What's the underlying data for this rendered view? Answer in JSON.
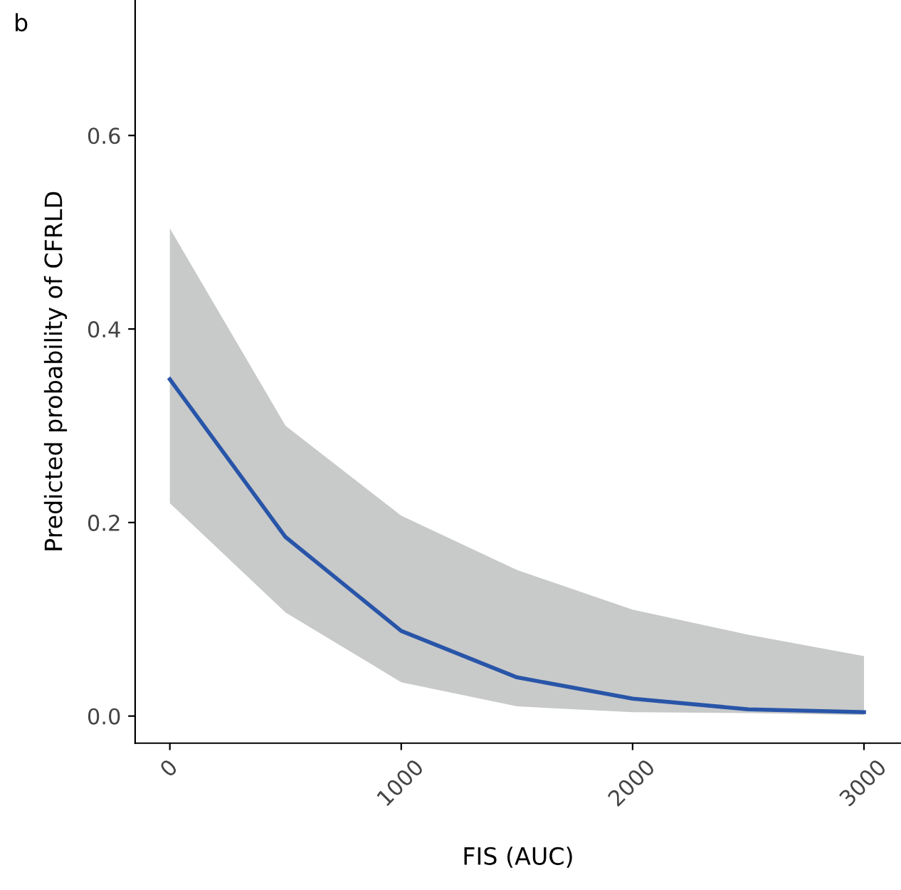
{
  "chart_data": {
    "type": "line",
    "xlabel": "FIS (AUC)",
    "ylabel": "Predicted probability of CFRLD",
    "annotations": [
      "b"
    ],
    "x": [
      0,
      500,
      1000,
      1500,
      2000,
      2500,
      3000
    ],
    "series": [
      {
        "color": "#2855a8",
        "values": [
          0.348,
          0.185,
          0.088,
          0.04,
          0.018,
          0.007,
          0.004
        ],
        "lower": [
          0.22,
          0.107,
          0.035,
          0.01,
          0.004,
          0.003,
          0.001
        ],
        "upper": [
          0.504,
          0.3,
          0.207,
          0.151,
          0.11,
          0.084,
          0.062
        ]
      }
    ],
    "xlim": [
      -150,
      3160
    ],
    "ylim": [
      -0.028,
      0.74
    ],
    "xticks": [
      0,
      1000,
      2000,
      3000
    ],
    "yticks": [
      {
        "value": 0,
        "label": "0.0"
      },
      {
        "value": 0.2,
        "label": "0.2"
      },
      {
        "value": 0.4,
        "label": "0.4"
      },
      {
        "value": 0.6,
        "label": "0.6"
      }
    ],
    "grid": false,
    "legend": false,
    "marker": "none",
    "line_style": "solid"
  }
}
